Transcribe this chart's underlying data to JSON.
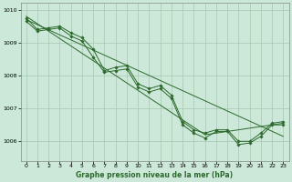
{
  "background_color": "#cce8d8",
  "plot_bg_color": "#cce8d8",
  "line_color": "#2d6a2d",
  "grid_color": "#a8c8b0",
  "spine_color": "#888888",
  "xlabel": "Graphe pression niveau de la mer (hPa)",
  "xlim": [
    -0.5,
    23.5
  ],
  "ylim": [
    1005.4,
    1010.2
  ],
  "yticks": [
    1006,
    1007,
    1008,
    1009,
    1010
  ],
  "xticks": [
    0,
    1,
    2,
    3,
    4,
    5,
    6,
    7,
    8,
    9,
    10,
    11,
    12,
    13,
    14,
    15,
    16,
    17,
    18,
    19,
    20,
    21,
    22,
    23
  ],
  "series": [
    {
      "x": [
        0,
        1,
        2,
        3,
        4,
        5,
        6,
        7,
        8,
        9,
        10,
        11,
        12,
        13,
        14,
        15,
        16,
        17,
        18,
        19,
        20,
        21,
        22,
        23
      ],
      "y": [
        1009.65,
        1009.35,
        1009.4,
        1009.45,
        1009.2,
        1009.05,
        1008.55,
        1008.1,
        1008.15,
        1008.2,
        1007.65,
        1007.5,
        1007.6,
        1007.3,
        1006.5,
        1006.25,
        1006.1,
        1006.3,
        1006.3,
        1005.9,
        1005.95,
        1006.15,
        1006.5,
        1006.5
      ]
    },
    {
      "x": [
        0,
        1,
        2,
        3,
        4,
        5,
        6,
        7,
        8,
        9,
        10,
        11,
        12,
        13,
        14,
        15,
        16,
        17,
        18,
        19,
        20,
        21,
        22,
        23
      ],
      "y": [
        1009.75,
        1009.4,
        1009.45,
        1009.5,
        1009.3,
        1009.15,
        1008.8,
        1008.15,
        1008.25,
        1008.3,
        1007.75,
        1007.6,
        1007.7,
        1007.4,
        1006.6,
        1006.35,
        1006.25,
        1006.35,
        1006.35,
        1006.0,
        1006.0,
        1006.25,
        1006.55,
        1006.6
      ]
    },
    {
      "x": [
        0,
        23
      ],
      "y": [
        1009.7,
        1006.15
      ]
    },
    {
      "x": [
        0,
        16,
        23
      ],
      "y": [
        1009.8,
        1006.2,
        1006.55
      ]
    }
  ]
}
